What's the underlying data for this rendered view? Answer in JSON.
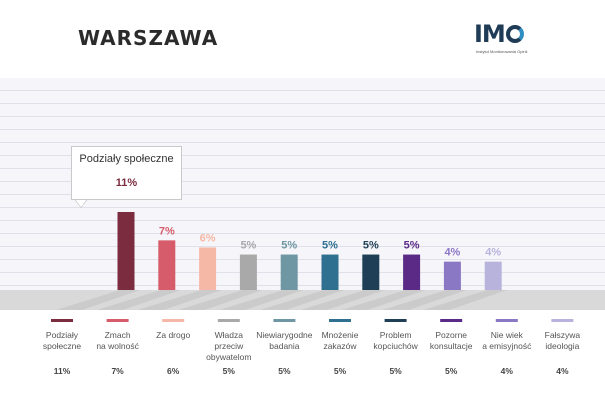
{
  "header": {
    "title": "WARSZAWA",
    "logo": {
      "letters": "IMO",
      "subtitle": "Instytut Monitorowania Opinii",
      "accent_color": "#2f8fc2",
      "text_color": "#1f3b55"
    }
  },
  "callout": {
    "label": "Podziały społeczne",
    "value": "11%"
  },
  "chart_data": {
    "type": "bar",
    "title": "WARSZAWA",
    "xlabel": "",
    "ylabel": "",
    "ylim": [
      0,
      11
    ],
    "grid": true,
    "categories": [
      [
        "Podziały",
        "społeczne"
      ],
      [
        "Zmach",
        "na wolność"
      ],
      [
        "Za drogo"
      ],
      [
        "Władza",
        "przeciw",
        "obywatelom"
      ],
      [
        "Niewiarygodne",
        "badania"
      ],
      [
        "Mnożenie",
        "zakazów"
      ],
      [
        "Problem",
        "kopciuchów"
      ],
      [
        "Pozorne",
        "konsultacje"
      ],
      [
        "Nie wiek",
        "a emisyjność"
      ],
      [
        "Fałszywa",
        "ideologia"
      ]
    ],
    "values": [
      11,
      7,
      6,
      5,
      5,
      5,
      5,
      5,
      4,
      4
    ],
    "bar_labels": [
      "11%",
      "7%",
      "6%",
      "5%",
      "5%",
      "5%",
      "5%",
      "5%",
      "4%",
      "4%"
    ],
    "legend_values": [
      "11%",
      "7%",
      "6%",
      "5%",
      "5%",
      "5%",
      "5%",
      "5%",
      "4%",
      "4%"
    ],
    "colors": [
      "#7b2c3f",
      "#d65c6b",
      "#f5b7a6",
      "#a9a9a9",
      "#6f97a3",
      "#2f6f8f",
      "#1e3f55",
      "#5a2a86",
      "#8b78c4",
      "#b8b3dc"
    ]
  }
}
